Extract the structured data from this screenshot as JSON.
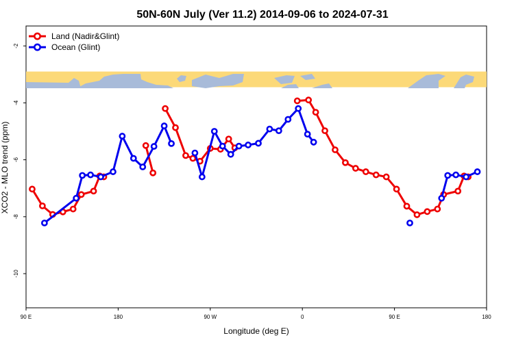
{
  "chart_data": {
    "type": "line",
    "title": "50N-60N July (Ver 11.2)   2014-09-06 to 2024-07-31",
    "xlabel": "Longitude (deg E)",
    "ylabel": "XCO2 - MLO trend (ppm)",
    "xlim": [
      90,
      540
    ],
    "ylim": [
      -11.2,
      -1.3
    ],
    "x_ticks": [
      {
        "value": 90,
        "label": "90 E"
      },
      {
        "value": 180,
        "label": "180"
      },
      {
        "value": 270,
        "label": "90 W"
      },
      {
        "value": 360,
        "label": "0"
      },
      {
        "value": 450,
        "label": "90 E"
      },
      {
        "value": 540,
        "label": "180"
      }
    ],
    "y_ticks": [
      {
        "value": -2,
        "label": "-2"
      },
      {
        "value": -4,
        "label": "-4"
      },
      {
        "value": -6,
        "label": "-6"
      },
      {
        "value": -8,
        "label": "-8"
      },
      {
        "value": -10,
        "label": "-10"
      }
    ],
    "map_strip": {
      "y_top": -2.9,
      "y_bottom": -3.45
    },
    "series": [
      {
        "name": "Land (Nadir&Glint)",
        "color": "#ee0000",
        "segments": [
          [
            [
              96,
              -7.03
            ],
            [
              106,
              -7.62
            ],
            [
              116,
              -7.92
            ],
            [
              126,
              -7.83
            ],
            [
              136,
              -7.73
            ],
            [
              144,
              -7.22
            ],
            [
              156,
              -7.1
            ],
            [
              162,
              -6.57
            ],
            [
              166,
              -6.6
            ]
          ],
          [
            [
              207,
              -5.5
            ],
            [
              214,
              -6.46
            ]
          ],
          [
            [
              226,
              -4.2
            ],
            [
              236,
              -4.87
            ],
            [
              246,
              -5.85
            ],
            [
              253,
              -5.95
            ],
            [
              260,
              -6.05
            ],
            [
              270,
              -5.6
            ],
            [
              280,
              -5.63
            ],
            [
              288,
              -5.27
            ],
            [
              294,
              -5.58
            ]
          ],
          [
            [
              355,
              -3.93
            ],
            [
              366,
              -3.9
            ],
            [
              373,
              -4.33
            ],
            [
              382,
              -4.98
            ],
            [
              392,
              -5.65
            ],
            [
              402,
              -6.1
            ],
            [
              412,
              -6.3
            ],
            [
              422,
              -6.42
            ],
            [
              432,
              -6.53
            ],
            [
              442,
              -6.6
            ],
            [
              452,
              -7.03
            ],
            [
              462,
              -7.63
            ],
            [
              472,
              -7.93
            ],
            [
              482,
              -7.82
            ],
            [
              492,
              -7.73
            ],
            [
              498,
              -7.22
            ],
            [
              512,
              -7.1
            ],
            [
              518,
              -6.57
            ],
            [
              522,
              -6.6
            ]
          ]
        ]
      },
      {
        "name": "Ocean (Glint)",
        "color": "#0000ee",
        "segments": [
          [
            [
              108,
              -8.22
            ],
            [
              139,
              -7.35
            ],
            [
              145,
              -6.55
            ],
            [
              153,
              -6.53
            ],
            [
              163,
              -6.6
            ],
            [
              175,
              -6.42
            ],
            [
              184,
              -5.17
            ],
            [
              195,
              -5.95
            ],
            [
              204,
              -6.25
            ],
            [
              215,
              -5.53
            ],
            [
              225,
              -4.81
            ],
            [
              232,
              -5.43
            ]
          ],
          [
            [
              255,
              -5.76
            ],
            [
              262,
              -6.6
            ],
            [
              274,
              -5
            ],
            [
              282,
              -5.52
            ],
            [
              290,
              -5.81
            ],
            [
              298,
              -5.52
            ],
            [
              307,
              -5.48
            ],
            [
              317,
              -5.42
            ],
            [
              328,
              -4.92
            ],
            [
              337,
              -4.98
            ],
            [
              346,
              -4.58
            ],
            [
              356,
              -4.2
            ],
            [
              365,
              -5.1
            ],
            [
              371,
              -5.38
            ]
          ],
          [
            [
              465,
              -8.22
            ]
          ],
          [
            [
              496,
              -7.35
            ],
            [
              502,
              -6.55
            ],
            [
              510,
              -6.53
            ],
            [
              520,
              -6.6
            ],
            [
              531,
              -6.42
            ]
          ]
        ]
      }
    ]
  }
}
